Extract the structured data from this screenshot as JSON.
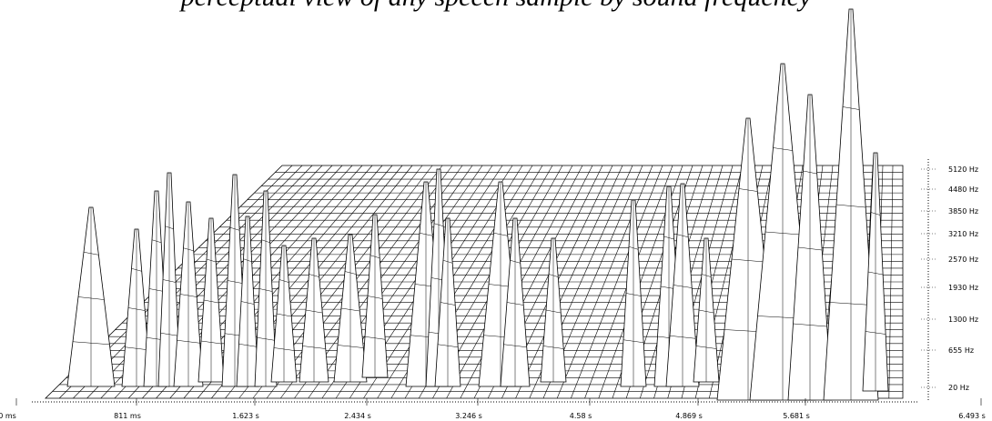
{
  "caption": "perceptual view of any speech sample by sound frequency",
  "time_labels": [
    "0 ms",
    "811 ms",
    "1.623 s",
    "2.434 s",
    "3.246 s",
    "4.58 s",
    "4.869 s",
    "5.681 s",
    "6.493 s"
  ],
  "frequency_labels": [
    "5120 Hz",
    "4480 Hz",
    "3850 Hz",
    "3210 Hz",
    "2570 Hz",
    "1930 Hz",
    "1300 Hz",
    "655 Hz",
    "20 Hz"
  ]
}
